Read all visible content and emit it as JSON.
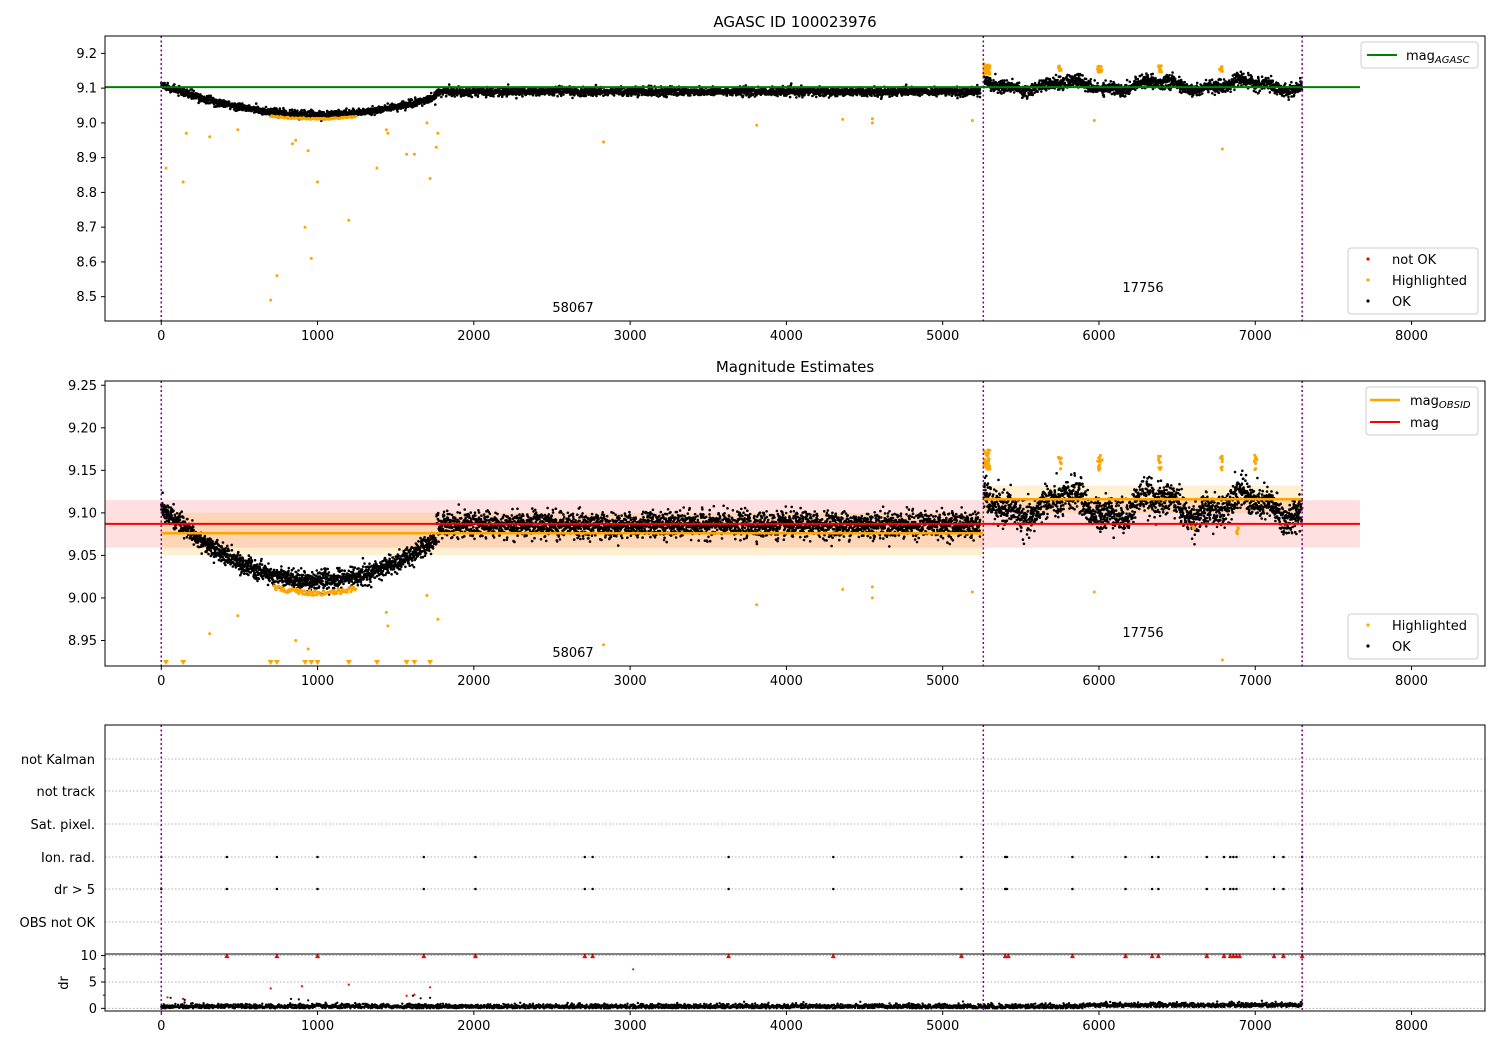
{
  "figure": {
    "colors": {
      "ok": "#000000",
      "highlighted": "#ffa500",
      "not_ok": "#ff0000",
      "agasc_line": "#008000",
      "obsid_line": "#ffa500",
      "mag_line": "#ff0000",
      "obs_boundary": "#800080",
      "flag_grid": "#b0b0b0"
    },
    "obs_boundaries": [
      0,
      5260,
      7300
    ],
    "xticks": [
      "0",
      "1000",
      "2000",
      "3000",
      "4000",
      "5000",
      "6000",
      "7000",
      "8000"
    ]
  },
  "chart_data": [
    {
      "type": "scatter",
      "title": "AGASC ID 100023976",
      "xlim": [
        -360,
        8470
      ],
      "ylim": [
        8.43,
        9.25
      ],
      "yticks": [
        "8.5",
        "8.6",
        "8.7",
        "8.8",
        "8.9",
        "9.0",
        "9.1",
        "9.2"
      ],
      "xticks": [
        "0",
        "1000",
        "2000",
        "3000",
        "4000",
        "5000",
        "6000",
        "7000",
        "8000"
      ],
      "mag_agasc": 9.103,
      "mag_agasc_x_range": [
        -360,
        7670
      ],
      "obsid_labels": [
        {
          "text": "58067",
          "x": 2630,
          "y": 8.455
        },
        {
          "text": "17756",
          "x": 6275,
          "y": 8.51
        }
      ],
      "legend_top": {
        "entries": [
          "mag_AGASC"
        ],
        "mag_label": "mag",
        "mag_sub": "AGASC",
        "placement": "upper right"
      },
      "legend_bottom": {
        "entries": [
          "not OK",
          "Highlighted",
          "OK"
        ],
        "placement": "lower right"
      },
      "highlighted_points": [
        [
          30,
          8.87
        ],
        [
          140,
          8.83
        ],
        [
          160,
          8.97
        ],
        [
          310,
          8.96
        ],
        [
          490,
          8.98
        ],
        [
          700,
          8.49
        ],
        [
          740,
          8.56
        ],
        [
          840,
          8.94
        ],
        [
          860,
          8.95
        ],
        [
          920,
          8.7
        ],
        [
          940,
          8.92
        ],
        [
          960,
          8.61
        ],
        [
          1000,
          8.83
        ],
        [
          1200,
          8.72
        ],
        [
          1380,
          8.87
        ],
        [
          1570,
          8.91
        ],
        [
          1620,
          8.91
        ],
        [
          1720,
          8.84
        ],
        [
          1760,
          8.93
        ],
        [
          1770,
          8.97
        ],
        [
          1450,
          8.97
        ],
        [
          1440,
          8.98
        ],
        [
          1700,
          9.0
        ],
        [
          2830,
          8.945
        ],
        [
          3810,
          8.993
        ],
        [
          4360,
          9.01
        ],
        [
          4550,
          9.0
        ],
        [
          4550,
          9.012
        ],
        [
          5190,
          9.007
        ],
        [
          5970,
          9.007
        ],
        [
          6790,
          8.925
        ]
      ],
      "ok_segments_description": "dense OK points follow a dip to ~9.02 near x=1000 and ~9.09-9.13 afterwards"
    },
    {
      "type": "scatter",
      "title": "Magnitude Estimates",
      "xlim": [
        -360,
        8470
      ],
      "ylim": [
        8.92,
        9.255
      ],
      "yticks": [
        "8.95",
        "9.00",
        "9.05",
        "9.10",
        "9.15",
        "9.20",
        "9.25"
      ],
      "xticks": [
        "0",
        "1000",
        "2000",
        "3000",
        "4000",
        "5000",
        "6000",
        "7000",
        "8000"
      ],
      "mag": 9.087,
      "mag_band": [
        9.059,
        9.115
      ],
      "mag_x_range": [
        -360,
        7670
      ],
      "mag_obsid": [
        {
          "x": [
            0,
            5260
          ],
          "value": 9.076,
          "band": [
            9.05,
            9.1
          ]
        },
        {
          "x": [
            5260,
            7300
          ],
          "value": 9.116,
          "band": [
            9.1,
            9.132
          ]
        }
      ],
      "obsid_labels": [
        {
          "text": "58067",
          "x": 2630,
          "y": 8.932
        },
        {
          "text": "17756",
          "x": 6275,
          "y": 8.956
        }
      ],
      "legend_top": {
        "mag_obsid_label": "mag",
        "mag_obsid_sub": "OBSID",
        "mag_label": "mag",
        "placement": "upper right"
      },
      "legend_bottom": {
        "entries": [
          "Highlighted",
          "OK"
        ],
        "placement": "lower right"
      },
      "highlighted_points": [
        [
          310,
          8.958
        ],
        [
          490,
          8.979
        ],
        [
          860,
          8.95
        ],
        [
          940,
          8.94
        ],
        [
          1440,
          8.983
        ],
        [
          1450,
          8.967
        ],
        [
          1700,
          9.003
        ],
        [
          1770,
          8.975
        ],
        [
          2830,
          8.945
        ],
        [
          3810,
          8.992
        ],
        [
          4360,
          9.01
        ],
        [
          4550,
          9.0
        ],
        [
          4550,
          9.013
        ],
        [
          5190,
          9.007
        ],
        [
          5970,
          9.007
        ],
        [
          6790,
          8.927
        ]
      ],
      "lower_limit_markers_x": [
        30,
        140,
        700,
        740,
        920,
        960,
        1000,
        1200,
        1380,
        1570,
        1620,
        1720
      ]
    },
    {
      "type": "scatter",
      "title": "",
      "xlim": [
        -360,
        8470
      ],
      "flag_rows": [
        "not Kalman",
        "not track",
        "Sat. pixel.",
        "Ion. rad.",
        "dr > 5",
        "OBS not OK"
      ],
      "flag_x": [
        0,
        420,
        740,
        1000,
        1680,
        2010,
        2710,
        2760,
        3630,
        4300,
        5120,
        5400,
        5410,
        5830,
        6170,
        6340,
        6380,
        6690,
        6800,
        6840,
        6860,
        6880,
        7120,
        7180,
        7300
      ],
      "dr_ylabel": "dr",
      "dr_ylim": [
        -0.5,
        10.3
      ],
      "dr_yticks": [
        "0",
        "5",
        "10"
      ],
      "dr_clipped_x": [
        420,
        740,
        1000,
        1680,
        2010,
        2710,
        2760,
        3630,
        4300,
        5120,
        5400,
        5420,
        5830,
        6170,
        6340,
        6380,
        6690,
        6800,
        6840,
        6860,
        6880,
        6900,
        7120,
        7180,
        7300
      ],
      "dr_highlighted": [
        [
          700,
          3.8
        ],
        [
          900,
          4.2
        ],
        [
          1200,
          4.5
        ],
        [
          1720,
          4.0
        ],
        [
          1570,
          2.4
        ],
        [
          1620,
          2.6
        ],
        [
          40,
          2.1
        ],
        [
          140,
          1.8
        ],
        [
          3020,
          7.4
        ]
      ]
    }
  ]
}
